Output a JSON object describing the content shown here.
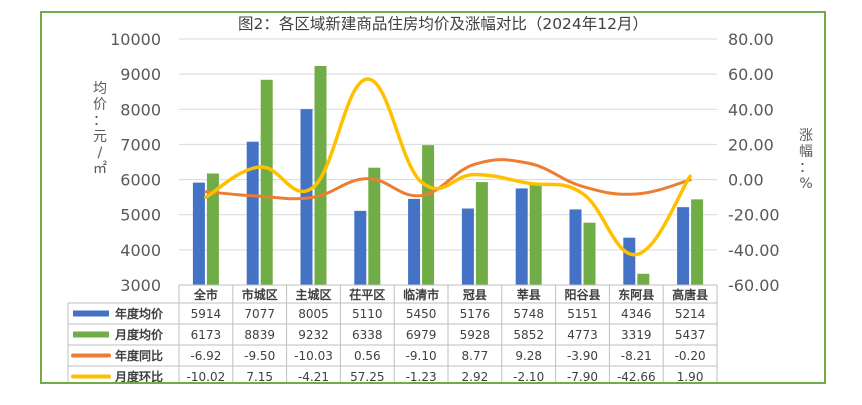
{
  "chart_data": {
    "type": "bar+line",
    "title": "图2：各区域新建商品住房均价及涨幅对比（2024年12月）",
    "categories": [
      "全市",
      "市城区",
      "主城区",
      "茌平区",
      "临清市",
      "冠县",
      "莘县",
      "阳谷县",
      "东阿县",
      "高唐县"
    ],
    "left_axis": {
      "label": "均价：元/㎡",
      "min": 3000,
      "max": 10000,
      "ticks": [
        "3000",
        "4000",
        "5000",
        "6000",
        "7000",
        "8000",
        "9000",
        "10000"
      ]
    },
    "right_axis": {
      "label": "涨幅：%",
      "min": -60,
      "max": 80,
      "ticks": [
        "-60.00",
        "-40.00",
        "-20.00",
        "0.00",
        "20.00",
        "40.00",
        "60.00",
        "80.00"
      ]
    },
    "bar_series": [
      {
        "name": "年度均价",
        "color": "#4472c4",
        "values": [
          5914,
          7077,
          8005,
          5110,
          5450,
          5176,
          5748,
          5151,
          4346,
          5214
        ]
      },
      {
        "name": "月度均价",
        "color": "#70ad47",
        "values": [
          6173,
          8839,
          9232,
          6338,
          6979,
          5928,
          5852,
          4773,
          3319,
          5437
        ]
      }
    ],
    "line_series": [
      {
        "name": "年度同比",
        "color": "#ed7d31",
        "values": [
          -6.92,
          -9.5,
          -10.03,
          0.56,
          -9.1,
          8.77,
          9.28,
          -3.9,
          -8.21,
          -0.2
        ],
        "labels": [
          "-6.92",
          "-9.50",
          "-10.03",
          "0.56",
          "-9.10",
          "8.77",
          "9.28",
          "-3.90",
          "-8.21",
          "-0.20"
        ]
      },
      {
        "name": "月度环比",
        "color": "#ffc000",
        "values": [
          -10.02,
          7.15,
          -4.21,
          57.25,
          -1.23,
          2.92,
          -2.1,
          -7.9,
          -42.66,
          1.9
        ],
        "labels": [
          "-10.02",
          "7.15",
          "-4.21",
          "57.25",
          "-1.23",
          "2.92",
          "-2.10",
          "-7.90",
          "-42.66",
          "1.90"
        ]
      }
    ]
  }
}
